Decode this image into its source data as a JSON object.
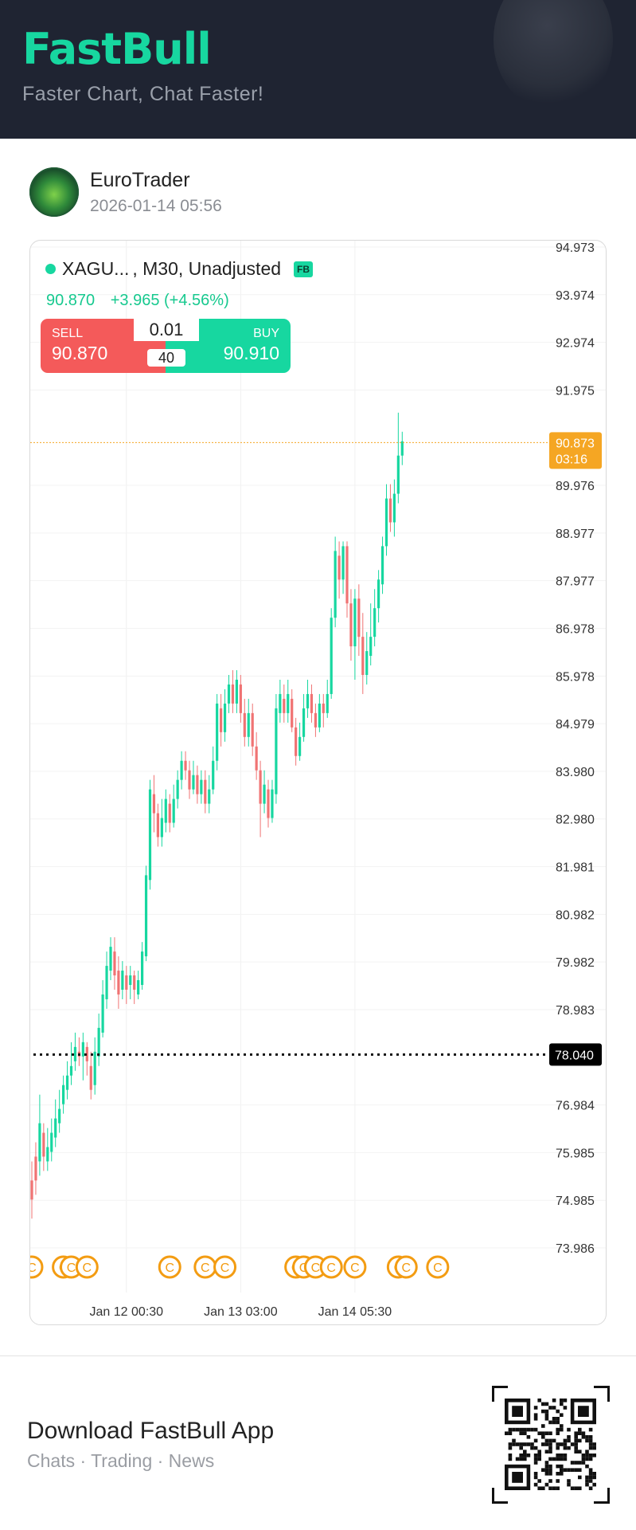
{
  "header": {
    "logo": "FastBull",
    "tagline": "Faster Chart, Chat Faster!"
  },
  "post": {
    "username": "EuroTrader",
    "timestamp": "2026-01-14 05:56"
  },
  "symbol": {
    "name": "XAGU...",
    "meta": ", M30, Unadjusted",
    "badge": "FB"
  },
  "quote": {
    "price": "90.870",
    "change": "+3.965 (+4.56%)"
  },
  "trade": {
    "sell_label": "SELL",
    "sell_price": "90.870",
    "buy_label": "BUY",
    "buy_price": "90.910",
    "lot": "0.01",
    "leverage": "40"
  },
  "colors": {
    "brand": "#17d7a0",
    "up": "#17d7a0",
    "down": "#f07373",
    "current": "#f5a623",
    "event": "#f39c12"
  },
  "footer": {
    "title": "Download FastBull App",
    "subtitle": "Chats · Trading · News"
  },
  "chart_data": {
    "type": "candlestick",
    "timeframe": "M30",
    "y_ticks": [
      "94.973",
      "93.974",
      "92.974",
      "91.975",
      "89.976",
      "88.977",
      "87.977",
      "86.978",
      "85.978",
      "84.979",
      "83.980",
      "82.980",
      "81.981",
      "80.982",
      "79.982",
      "78.983",
      "76.984",
      "75.985",
      "74.985",
      "73.986"
    ],
    "x_ticks": [
      {
        "label": "Jan 12 00:30",
        "index": 24
      },
      {
        "label": "Jan 13 03:00",
        "index": 53
      },
      {
        "label": "Jan 14 05:30",
        "index": 82
      }
    ],
    "current_price": {
      "value": 90.873,
      "label": "90.873",
      "countdown": "03:16"
    },
    "reference_line": {
      "value": 78.04,
      "label": "78.040"
    },
    "event_icon_label": "C",
    "event_positions": [
      0,
      8,
      10,
      14,
      35,
      44,
      49,
      67,
      69,
      72,
      76,
      82,
      93,
      95,
      103
    ],
    "candles": [
      [
        75.4,
        75.0,
        75.8,
        74.6
      ],
      [
        75.9,
        75.4,
        76.2,
        75.1
      ],
      [
        75.8,
        76.6,
        77.2,
        75.5
      ],
      [
        76.4,
        75.9,
        76.6,
        75.6
      ],
      [
        75.8,
        76.1,
        76.5,
        75.6
      ],
      [
        76.0,
        76.4,
        76.7,
        75.8
      ],
      [
        76.3,
        76.7,
        77.1,
        76.1
      ],
      [
        76.6,
        76.9,
        77.3,
        76.4
      ],
      [
        77.0,
        77.4,
        77.6,
        76.8
      ],
      [
        77.3,
        77.6,
        77.9,
        77.1
      ],
      [
        77.6,
        77.8,
        78.3,
        77.4
      ],
      [
        77.9,
        78.2,
        78.5,
        77.7
      ],
      [
        78.1,
        78.0,
        78.4,
        77.8
      ],
      [
        78.0,
        78.3,
        78.5,
        77.5
      ],
      [
        78.2,
        77.9,
        78.3,
        77.6
      ],
      [
        77.8,
        77.3,
        78.1,
        77.1
      ],
      [
        77.4,
        78.1,
        78.4,
        77.2
      ],
      [
        78.0,
        78.6,
        78.9,
        77.8
      ],
      [
        78.5,
        79.3,
        79.6,
        78.4
      ],
      [
        79.2,
        79.9,
        80.2,
        79.0
      ],
      [
        79.8,
        80.3,
        80.5,
        79.6
      ],
      [
        80.2,
        79.7,
        80.5,
        79.4
      ],
      [
        79.8,
        79.3,
        80.1,
        79.0
      ],
      [
        79.4,
        79.8,
        80.0,
        79.2
      ],
      [
        79.7,
        79.4,
        79.9,
        79.1
      ],
      [
        79.5,
        79.7,
        79.9,
        79.2
      ],
      [
        79.7,
        79.4,
        79.8,
        79.1
      ],
      [
        79.3,
        79.6,
        79.8,
        79.2
      ],
      [
        79.5,
        80.2,
        80.4,
        79.4
      ],
      [
        80.1,
        81.8,
        82.0,
        80.0
      ],
      [
        81.7,
        83.6,
        83.8,
        81.5
      ],
      [
        83.5,
        83.1,
        83.9,
        82.7
      ],
      [
        83.1,
        82.6,
        83.3,
        82.4
      ],
      [
        82.6,
        83.0,
        83.4,
        82.4
      ],
      [
        82.9,
        83.4,
        83.6,
        82.7
      ],
      [
        83.3,
        82.9,
        83.5,
        82.7
      ],
      [
        82.9,
        83.4,
        83.7,
        82.8
      ],
      [
        83.4,
        83.8,
        84.0,
        83.2
      ],
      [
        83.8,
        84.2,
        84.4,
        83.6
      ],
      [
        84.2,
        84.0,
        84.4,
        83.8
      ],
      [
        84.0,
        83.6,
        84.2,
        83.4
      ],
      [
        83.6,
        83.9,
        84.2,
        83.5
      ],
      [
        83.9,
        83.5,
        84.1,
        83.3
      ],
      [
        83.5,
        83.8,
        84.0,
        83.3
      ],
      [
        83.8,
        83.3,
        84.0,
        83.1
      ],
      [
        83.3,
        83.6,
        83.9,
        83.1
      ],
      [
        83.6,
        84.2,
        84.5,
        83.5
      ],
      [
        84.2,
        85.4,
        85.6,
        84.0
      ],
      [
        85.3,
        84.8,
        85.6,
        84.5
      ],
      [
        84.8,
        85.4,
        85.7,
        84.6
      ],
      [
        85.4,
        85.8,
        86.0,
        85.2
      ],
      [
        85.8,
        85.4,
        86.1,
        85.2
      ],
      [
        85.4,
        85.9,
        86.1,
        85.2
      ],
      [
        85.8,
        85.2,
        86.0,
        85.0
      ],
      [
        85.2,
        84.7,
        85.5,
        84.5
      ],
      [
        84.7,
        85.2,
        85.5,
        84.5
      ],
      [
        85.2,
        84.5,
        85.4,
        84.3
      ],
      [
        84.5,
        84.0,
        84.8,
        83.8
      ],
      [
        84.0,
        83.3,
        84.2,
        82.6
      ],
      [
        83.3,
        83.7,
        84.0,
        83.1
      ],
      [
        83.6,
        83.0,
        83.8,
        82.8
      ],
      [
        83.0,
        83.6,
        83.8,
        82.9
      ],
      [
        83.5,
        85.3,
        85.6,
        83.3
      ],
      [
        85.2,
        85.6,
        85.9,
        85.0
      ],
      [
        85.5,
        85.2,
        85.8,
        85.0
      ],
      [
        85.2,
        85.6,
        85.9,
        85.0
      ],
      [
        85.5,
        84.9,
        85.7,
        84.8
      ],
      [
        84.9,
        84.3,
        85.1,
        84.1
      ],
      [
        84.3,
        84.7,
        85.0,
        84.2
      ],
      [
        84.7,
        85.3,
        85.6,
        84.6
      ],
      [
        85.3,
        85.6,
        85.9,
        85.1
      ],
      [
        85.6,
        85.2,
        85.8,
        85.0
      ],
      [
        85.2,
        84.9,
        85.4,
        84.7
      ],
      [
        84.9,
        85.4,
        85.6,
        84.8
      ],
      [
        85.4,
        85.2,
        85.6,
        84.9
      ],
      [
        85.2,
        85.6,
        85.9,
        85.1
      ],
      [
        85.6,
        87.2,
        87.4,
        85.5
      ],
      [
        87.2,
        88.6,
        88.9,
        87.0
      ],
      [
        88.5,
        88.0,
        88.8,
        87.6
      ],
      [
        88.0,
        88.7,
        88.8,
        87.7
      ],
      [
        88.7,
        87.5,
        88.8,
        87.2
      ],
      [
        87.5,
        86.6,
        87.8,
        86.3
      ],
      [
        86.6,
        87.6,
        87.8,
        85.9
      ],
      [
        87.6,
        86.8,
        87.9,
        86.4
      ],
      [
        86.8,
        86.0,
        87.3,
        85.6
      ],
      [
        86.0,
        86.5,
        86.9,
        85.8
      ],
      [
        86.4,
        86.8,
        87.5,
        86.2
      ],
      [
        86.8,
        87.4,
        87.8,
        86.6
      ],
      [
        87.4,
        88.0,
        88.2,
        87.1
      ],
      [
        87.9,
        88.7,
        88.9,
        87.7
      ],
      [
        88.7,
        89.7,
        90.0,
        88.5
      ],
      [
        89.7,
        89.2,
        90.0,
        89.0
      ],
      [
        89.2,
        89.8,
        90.1,
        88.9
      ],
      [
        89.8,
        90.6,
        91.5,
        89.6
      ],
      [
        90.6,
        90.9,
        91.1,
        90.4
      ]
    ]
  }
}
